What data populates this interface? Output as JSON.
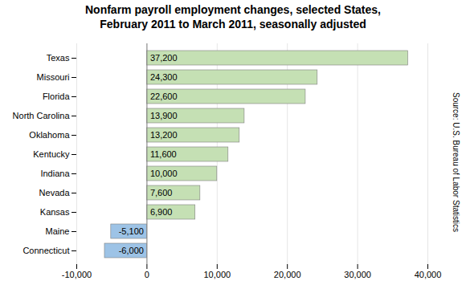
{
  "chart_data": {
    "type": "bar",
    "orientation": "horizontal",
    "title": "Nonfarm payroll employment changes, selected States,\nFebruary 2011 to March 2011,  seasonally adjusted",
    "annotation": "Source:  U.S. Bureau of Labor Statistics",
    "categories": [
      "Texas",
      "Missouri",
      "Florida",
      "North Carolina",
      "Oklahoma",
      "Kentucky",
      "Indiana",
      "Nevada",
      "Kansas",
      "Maine",
      "Connecticut"
    ],
    "values": [
      37200,
      24300,
      22600,
      13900,
      13200,
      11600,
      10000,
      7600,
      6900,
      -5100,
      -6000
    ],
    "value_labels": [
      "37,200",
      "24,300",
      "22,600",
      "13,900",
      "13,200",
      "11,600",
      "10,000",
      "7,600",
      "6,900",
      "-5,100",
      "-6,000"
    ],
    "data_labels": true,
    "colors": [
      "#c5e0b4",
      "#c5e0b4",
      "#c5e0b4",
      "#c5e0b4",
      "#c5e0b4",
      "#c5e0b4",
      "#c5e0b4",
      "#c5e0b4",
      "#c5e0b4",
      "#9dc3e6",
      "#9dc3e6"
    ],
    "xlim": [
      -10000,
      40000
    ],
    "xticks": [
      {
        "value": -10000,
        "label": "-10,000"
      },
      0,
      {
        "value": 10000,
        "label": "10,000"
      },
      {
        "value": 20000,
        "label": "20,000"
      },
      {
        "value": 30000,
        "label": "30,000"
      },
      {
        "value": 40000,
        "label": "40,000"
      }
    ],
    "grid": true
  }
}
